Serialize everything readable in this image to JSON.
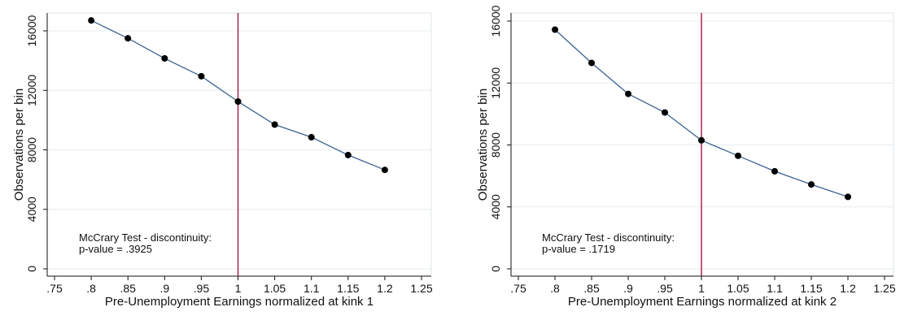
{
  "chart_data": [
    {
      "type": "line",
      "title": "",
      "xlabel": "Pre-Unemployment Earnings normalized at kink 1",
      "ylabel": "Observations per bin",
      "xlim": [
        0.75,
        1.25
      ],
      "ylim": [
        0,
        16000
      ],
      "xticks": [
        ".75",
        ".8",
        ".85",
        ".9",
        ".95",
        "1",
        "1.05",
        "1.1",
        "1.15",
        "1.2",
        "1.25"
      ],
      "yticks": [
        "0",
        "4000",
        "8000",
        "12000",
        "16000"
      ],
      "grid": true,
      "x": [
        0.8,
        0.85,
        0.9,
        0.95,
        1.0,
        1.05,
        1.1,
        1.15,
        1.2
      ],
      "series": [
        {
          "values": [
            16700,
            15500,
            14150,
            12950,
            11250,
            9700,
            8850,
            7650,
            6650
          ]
        }
      ],
      "vline": 1.0,
      "annotation": [
        "McCrary Test - discontinuity:",
        "p-value = .3925"
      ],
      "colors": {
        "line": "#3b6290",
        "marker": "#000000",
        "vline": "#a3173f",
        "grid": "#e6ecf0"
      }
    },
    {
      "type": "line",
      "title": "",
      "xlabel": "Pre-Unemployment Earnings normalized at kink 2",
      "ylabel": "Observations per bin",
      "xlim": [
        0.75,
        1.25
      ],
      "ylim": [
        0,
        16000
      ],
      "xticks": [
        ".75",
        ".8",
        ".85",
        ".9",
        ".95",
        "1",
        "1.05",
        "1.1",
        "1.15",
        "1.2",
        "1.25"
      ],
      "yticks": [
        "0",
        "4000",
        "8000",
        "12000",
        "16000"
      ],
      "grid": true,
      "x": [
        0.8,
        0.85,
        0.9,
        0.95,
        1.0,
        1.05,
        1.1,
        1.15,
        1.2
      ],
      "series": [
        {
          "values": [
            15450,
            13300,
            11300,
            10100,
            8300,
            7300,
            6300,
            5450,
            4650
          ]
        }
      ],
      "vline": 1.0,
      "annotation": [
        "McCrary Test - discontinuity:",
        "p-value = .1719"
      ],
      "colors": {
        "line": "#3b6290",
        "marker": "#000000",
        "vline": "#a3173f",
        "grid": "#e6ecf0"
      }
    }
  ]
}
